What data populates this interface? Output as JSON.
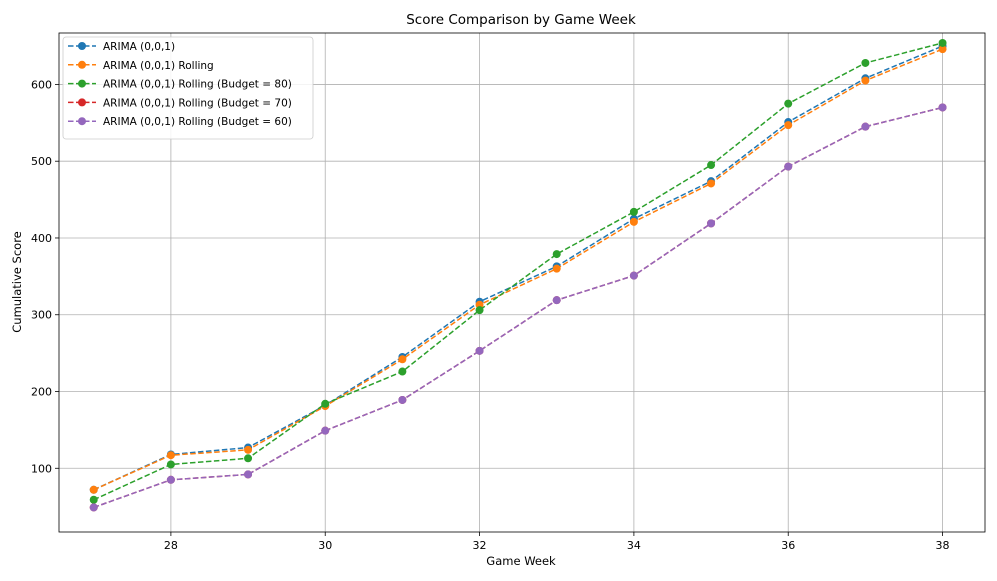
{
  "chart_data": {
    "type": "line",
    "title": "Score Comparison by Game Week",
    "xlabel": "Game Week",
    "ylabel": "Cumulative Score",
    "xlim": [
      26.55,
      38.55
    ],
    "ylim": [
      17,
      667
    ],
    "xticks": [
      28,
      30,
      32,
      34,
      36,
      38
    ],
    "yticks": [
      100,
      200,
      300,
      400,
      500,
      600
    ],
    "grid": true,
    "legend_position": "top-left",
    "x": [
      27,
      28,
      29,
      30,
      31,
      32,
      33,
      34,
      35,
      36,
      37,
      38
    ],
    "series": [
      {
        "name": "ARIMA (0,0,1)",
        "color": "#1f77b4",
        "values": [
          72,
          118,
          127,
          182,
          245,
          317,
          363,
          425,
          474,
          551,
          608,
          650
        ]
      },
      {
        "name": "ARIMA (0,0,1) Rolling",
        "color": "#ff7f0e",
        "values": [
          72,
          117,
          124,
          181,
          242,
          313,
          360,
          421,
          471,
          547,
          605,
          646
        ]
      },
      {
        "name": "ARIMA (0,0,1) Rolling (Budget = 80)",
        "color": "#2ca02c",
        "values": [
          59,
          105,
          113,
          184,
          226,
          306,
          379,
          434,
          495,
          575,
          628,
          654
        ]
      },
      {
        "name": "ARIMA (0,0,1) Rolling (Budget = 70)",
        "color": "#d62728",
        "values": [
          49,
          85,
          92,
          149,
          189,
          253,
          319,
          351,
          419,
          493,
          545,
          570
        ]
      },
      {
        "name": "ARIMA (0,0,1) Rolling (Budget = 60)",
        "color": "#9467bd",
        "values": [
          49,
          85,
          92,
          149,
          189,
          253,
          319,
          351,
          419,
          493,
          545,
          570
        ]
      }
    ]
  }
}
